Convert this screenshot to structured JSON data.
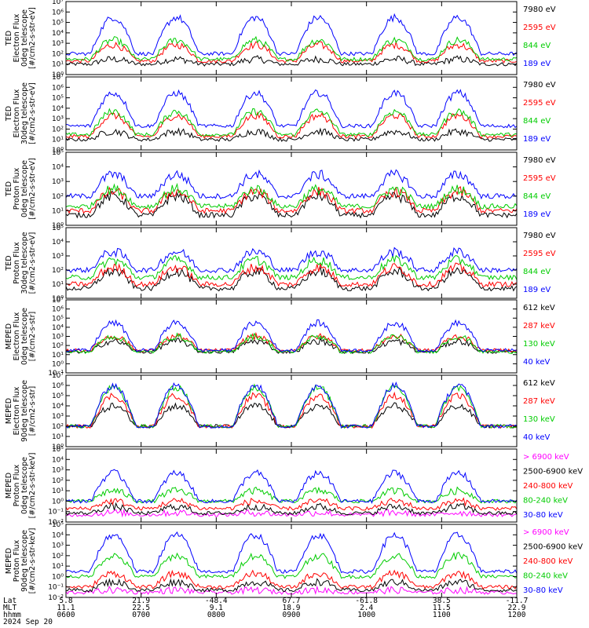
{
  "chart_data": [
    {
      "type": "line",
      "ylabel_lines": [
        "TED",
        "Electron Flux",
        "0deg telescope",
        "[#/cm2-s-str-eV]"
      ],
      "yscale": "log",
      "ylim": [
        1,
        10000000
      ],
      "yticks": [
        "10⁰",
        "10¹",
        "10²",
        "10³",
        "10⁴",
        "10⁵",
        "10⁶",
        "10⁷"
      ],
      "series": [
        {
          "name": "7980 eV",
          "color": "#000000",
          "base": 10,
          "peak": 30
        },
        {
          "name": "2595 eV",
          "color": "#ff0000",
          "base": 20,
          "peak": 700
        },
        {
          "name": "844 eV",
          "color": "#00cc00",
          "base": 30,
          "peak": 2000
        },
        {
          "name": "189 eV",
          "color": "#0000ff",
          "base": 100,
          "peak": 300000
        }
      ]
    },
    {
      "type": "line",
      "ylabel_lines": [
        "TED",
        "Electron Flux",
        "30deg telescope",
        "[#/cm2-s-str-eV]"
      ],
      "yscale": "log",
      "ylim": [
        1,
        10000000
      ],
      "yticks": [
        "10⁰",
        "10¹",
        "10²",
        "10³",
        "10⁴",
        "10⁵",
        "10⁶",
        "10⁷"
      ],
      "series": [
        {
          "name": "7980 eV",
          "color": "#000000",
          "base": 10,
          "peak": 60
        },
        {
          "name": "2595 eV",
          "color": "#ff0000",
          "base": 20,
          "peak": 2000
        },
        {
          "name": "844 eV",
          "color": "#00cc00",
          "base": 30,
          "peak": 5000
        },
        {
          "name": "189 eV",
          "color": "#0000ff",
          "base": 200,
          "peak": 300000
        }
      ]
    },
    {
      "type": "line",
      "ylabel_lines": [
        "TED",
        "Proton Flux",
        "0deg telescope",
        "[#/cm2-s-str-eV]"
      ],
      "yscale": "log",
      "ylim": [
        1,
        100000
      ],
      "yticks": [
        "10⁰",
        "10¹",
        "10²",
        "10³",
        "10⁴",
        "10⁵"
      ],
      "series": [
        {
          "name": "7980 eV",
          "color": "#000000",
          "base": 5,
          "peak": 100
        },
        {
          "name": "2595 eV",
          "color": "#ff0000",
          "base": 10,
          "peak": 200
        },
        {
          "name": "844 eV",
          "color": "#00cc00",
          "base": 20,
          "peak": 300
        },
        {
          "name": "189 eV",
          "color": "#0000ff",
          "base": 100,
          "peak": 3000
        }
      ]
    },
    {
      "type": "line",
      "ylabel_lines": [
        "TED",
        "Proton Flux",
        "30deg telescope",
        "[#/cm2-s-str-eV]"
      ],
      "yscale": "log",
      "ylim": [
        1,
        100000
      ],
      "yticks": [
        "10⁰",
        "10¹",
        "10²",
        "10³",
        "10⁴",
        "10⁵"
      ],
      "series": [
        {
          "name": "7980 eV",
          "color": "#000000",
          "base": 5,
          "peak": 80
        },
        {
          "name": "2595 eV",
          "color": "#ff0000",
          "base": 10,
          "peak": 150
        },
        {
          "name": "844 eV",
          "color": "#00cc00",
          "base": 30,
          "peak": 500
        },
        {
          "name": "189 eV",
          "color": "#0000ff",
          "base": 100,
          "peak": 2000
        }
      ]
    },
    {
      "type": "line",
      "ylabel_lines": [
        "MEPED",
        "Electron Flux",
        "0deg telescope",
        "[#/cm2-s-str]"
      ],
      "yscale": "log",
      "ylim": [
        0.1,
        10000000
      ],
      "yticks": [
        "10⁻¹",
        "10⁰",
        "10¹",
        "10²",
        "10³",
        "10⁴",
        "10⁵",
        "10⁶",
        "10⁷"
      ],
      "series": [
        {
          "name": "612 keV",
          "color": "#000000",
          "base": 20,
          "peak": 300
        },
        {
          "name": "287 keV",
          "color": "#ff0000",
          "base": 30,
          "peak": 1000
        },
        {
          "name": "130 keV",
          "color": "#00cc00",
          "base": 20,
          "peak": 1000
        },
        {
          "name": "40 keV",
          "color": "#0000ff",
          "base": 30,
          "peak": 30000
        }
      ]
    },
    {
      "type": "line",
      "ylabel_lines": [
        "MEPED",
        "Electron Flux",
        "90deg telescope",
        "[#/cm2-s-str]"
      ],
      "yscale": "log",
      "ylim": [
        1,
        10000000
      ],
      "yticks": [
        "10⁰",
        "10¹",
        "10²",
        "10³",
        "10⁴",
        "10⁵",
        "10⁶",
        "10⁷"
      ],
      "series": [
        {
          "name": "612 keV",
          "color": "#000000",
          "base": 100,
          "peak": 10000
        },
        {
          "name": "287 keV",
          "color": "#ff0000",
          "base": 100,
          "peak": 100000
        },
        {
          "name": "130 keV",
          "color": "#00cc00",
          "base": 100,
          "peak": 600000
        },
        {
          "name": "40 keV",
          "color": "#0000ff",
          "base": 100,
          "peak": 1000000
        }
      ]
    },
    {
      "type": "line",
      "ylabel_lines": [
        "MEPED",
        "Proton Flux",
        "0deg telescope",
        "[#/cm2-s-str-keV]"
      ],
      "yscale": "log",
      "ylim": [
        0.01,
        100000
      ],
      "yticks": [
        "10⁻²",
        "10⁻¹",
        "10⁰",
        "10¹",
        "10²",
        "10³",
        "10⁴",
        "10⁵"
      ],
      "series": [
        {
          "name": "> 6900 keV",
          "color": "#ff00ff",
          "base": 0.05,
          "peak": 0.08
        },
        {
          "name": "2500-6900 keV",
          "color": "#000000",
          "base": 0.07,
          "peak": 0.3
        },
        {
          "name": "240-800 keV",
          "color": "#ff0000",
          "base": 0.2,
          "peak": 1
        },
        {
          "name": "80-240 keV",
          "color": "#00cc00",
          "base": 1,
          "peak": 10
        },
        {
          "name": "30-80 keV",
          "color": "#0000ff",
          "base": 1,
          "peak": 500
        }
      ]
    },
    {
      "type": "line",
      "ylabel_lines": [
        "MEPED",
        "Proton Flux",
        "90deg telescope",
        "[#/cm2-s-str-keV]"
      ],
      "yscale": "log",
      "ylim": [
        0.01,
        100000
      ],
      "yticks": [
        "10⁻²",
        "10⁻¹",
        "10⁰",
        "10¹",
        "10²",
        "10³",
        "10⁴",
        "10⁵"
      ],
      "series": [
        {
          "name": "> 6900 keV",
          "color": "#ff00ff",
          "base": 0.03,
          "peak": 0.05
        },
        {
          "name": "2500-6900 keV",
          "color": "#000000",
          "base": 0.05,
          "peak": 0.3
        },
        {
          "name": "240-800 keV",
          "color": "#ff0000",
          "base": 0.1,
          "peak": 2
        },
        {
          "name": "80-240 keV",
          "color": "#00cc00",
          "base": 1,
          "peak": 100
        },
        {
          "name": "30-80 keV",
          "color": "#0000ff",
          "base": 3,
          "peak": 10000
        }
      ]
    }
  ],
  "footer": {
    "row_labels": [
      "Lat",
      "MLT",
      "hhmm",
      "2024 Sep 20"
    ],
    "lat": [
      "5.8",
      "21.9",
      "-48.4",
      "67.7",
      "-61.8",
      "38.5",
      "-11.7"
    ],
    "mlt": [
      "11.1",
      "22.5",
      "9.1",
      "18.9",
      "2.4",
      "11.5",
      "22.9"
    ],
    "hhmm": [
      "0600",
      "0700",
      "0800",
      "0900",
      "1000",
      "1100",
      "1200"
    ]
  },
  "passes": [
    0.105,
    0.245,
    0.42,
    0.56,
    0.73,
    0.87
  ]
}
